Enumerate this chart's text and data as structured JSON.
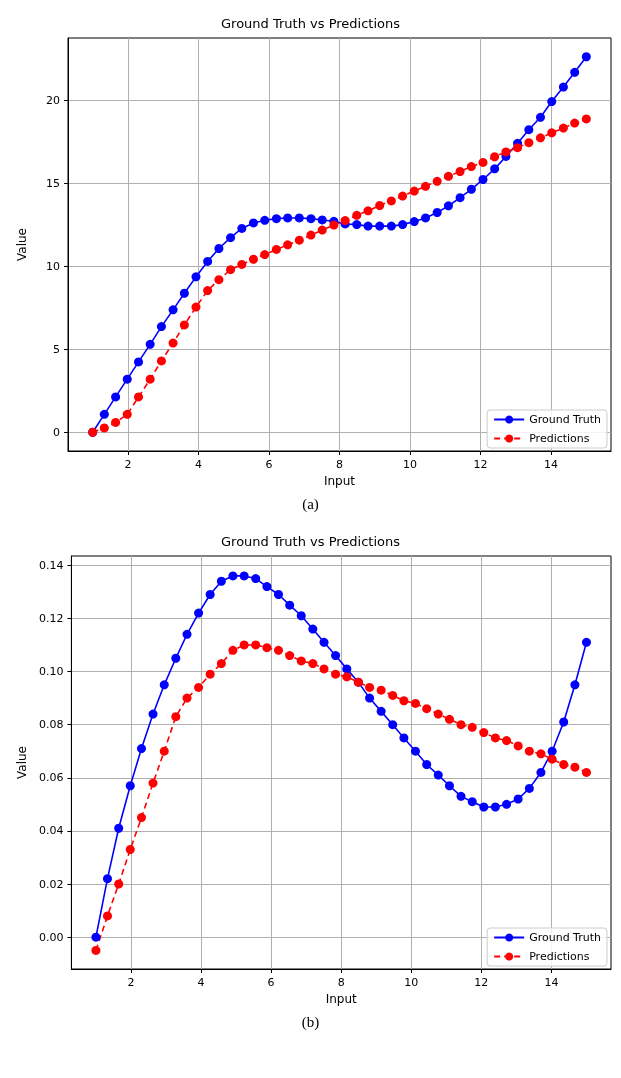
{
  "chart_data": [
    {
      "type": "line",
      "title": "Ground Truth vs Predictions",
      "xlabel": "Input",
      "ylabel": "Value",
      "annotations": [
        "(a)"
      ],
      "x": [
        1,
        1.33,
        1.65,
        1.98,
        2.3,
        2.63,
        2.95,
        3.28,
        3.6,
        3.93,
        4.26,
        4.58,
        4.91,
        5.23,
        5.56,
        5.88,
        6.21,
        6.53,
        6.86,
        7.19,
        7.51,
        7.84,
        8.16,
        8.49,
        8.81,
        9.14,
        9.47,
        9.79,
        10.12,
        10.44,
        10.77,
        11.09,
        11.42,
        11.74,
        12.07,
        12.4,
        12.72,
        13.05,
        13.37,
        13.7,
        14.02,
        14.35,
        14.67,
        15
      ],
      "series": [
        {
          "name": "Ground Truth",
          "color": "#0000ff",
          "line_style": "solid",
          "values": [
            0,
            1.08,
            2.13,
            3.2,
            4.24,
            5.3,
            6.37,
            7.38,
            8.38,
            9.37,
            10.3,
            11.08,
            11.73,
            12.29,
            12.62,
            12.78,
            12.88,
            12.92,
            12.92,
            12.88,
            12.8,
            12.72,
            12.56,
            12.52,
            12.43,
            12.43,
            12.43,
            12.52,
            12.7,
            12.92,
            13.25,
            13.65,
            14.14,
            14.65,
            15.24,
            15.88,
            16.63,
            17.42,
            18.24,
            18.99,
            19.94,
            20.81,
            21.7,
            22.64
          ]
        },
        {
          "name": "Predictions",
          "color": "#ff0000",
          "line_style": "dashed",
          "values": [
            0,
            0.26,
            0.59,
            1.08,
            2.13,
            3.2,
            4.3,
            5.38,
            6.47,
            7.55,
            8.54,
            9.2,
            9.8,
            10.12,
            10.43,
            10.71,
            11.02,
            11.3,
            11.58,
            11.89,
            12.19,
            12.49,
            12.76,
            13.08,
            13.35,
            13.67,
            13.95,
            14.24,
            14.54,
            14.83,
            15.13,
            15.43,
            15.72,
            16.02,
            16.27,
            16.61,
            16.9,
            17.16,
            17.46,
            17.75,
            18.05,
            18.34,
            18.64,
            18.89
          ]
        }
      ],
      "xlim": [
        0.3,
        15.7
      ],
      "xticks": [
        2,
        4,
        6,
        8,
        10,
        12,
        14
      ],
      "ylim": [
        -1.13,
        23.77
      ],
      "yticks": [
        0,
        5,
        10,
        15,
        20
      ],
      "grid": true,
      "legend": "bottom right",
      "marker": "circle"
    },
    {
      "type": "line",
      "title": "Ground Truth vs Predictions",
      "xlabel": "Input",
      "ylabel": "Value",
      "annotations": [
        "(b)"
      ],
      "x": [
        1,
        1.33,
        1.65,
        1.98,
        2.3,
        2.63,
        2.95,
        3.28,
        3.6,
        3.93,
        4.26,
        4.58,
        4.91,
        5.23,
        5.56,
        5.88,
        6.21,
        6.53,
        6.86,
        7.19,
        7.51,
        7.84,
        8.16,
        8.49,
        8.81,
        9.14,
        9.47,
        9.79,
        10.12,
        10.44,
        10.77,
        11.09,
        11.42,
        11.74,
        12.07,
        12.4,
        12.72,
        13.05,
        13.37,
        13.7,
        14.02,
        14.35,
        14.67,
        15
      ],
      "series": [
        {
          "name": "Ground Truth",
          "color": "#0000ff",
          "line_style": "solid",
          "values": [
            0,
            0.022,
            0.041,
            0.057,
            0.071,
            0.084,
            0.095,
            0.105,
            0.114,
            0.122,
            0.129,
            0.134,
            0.136,
            0.136,
            0.135,
            0.132,
            0.129,
            0.125,
            0.121,
            0.116,
            0.111,
            0.106,
            0.101,
            0.096,
            0.09,
            0.085,
            0.08,
            0.075,
            0.07,
            0.065,
            0.061,
            0.057,
            0.053,
            0.051,
            0.049,
            0.049,
            0.05,
            0.052,
            0.056,
            0.062,
            0.07,
            0.081,
            0.095,
            0.111
          ]
        },
        {
          "name": "Predictions",
          "color": "#ff0000",
          "line_style": "dashed",
          "values": [
            -0.005,
            0.008,
            0.02,
            0.033,
            0.045,
            0.058,
            0.07,
            0.083,
            0.09,
            0.094,
            0.099,
            0.103,
            0.108,
            0.11,
            0.11,
            0.109,
            0.108,
            0.106,
            0.104,
            0.103,
            0.101,
            0.099,
            0.098,
            0.096,
            0.094,
            0.093,
            0.091,
            0.089,
            0.088,
            0.086,
            0.084,
            0.082,
            0.08,
            0.079,
            0.077,
            0.075,
            0.074,
            0.072,
            0.07,
            0.069,
            0.067,
            0.065,
            0.064,
            0.062
          ]
        }
      ],
      "xlim": [
        0.3,
        15.7
      ],
      "xticks": [
        2,
        4,
        6,
        8,
        10,
        12,
        14
      ],
      "ylim": [
        -0.012,
        0.1435
      ],
      "yticks": [
        {
          "value": 0,
          "label": "0.00"
        },
        {
          "value": 0.02,
          "label": "0.02"
        },
        {
          "value": 0.04,
          "label": "0.04"
        },
        {
          "value": 0.06,
          "label": "0.06"
        },
        {
          "value": 0.08,
          "label": "0.08"
        },
        {
          "value": 0.1,
          "label": "0.10"
        },
        {
          "value": 0.12,
          "label": "0.12"
        },
        {
          "value": 0.14,
          "label": "0.14"
        }
      ],
      "grid": true,
      "legend": "bottom right",
      "marker": "circle"
    }
  ]
}
